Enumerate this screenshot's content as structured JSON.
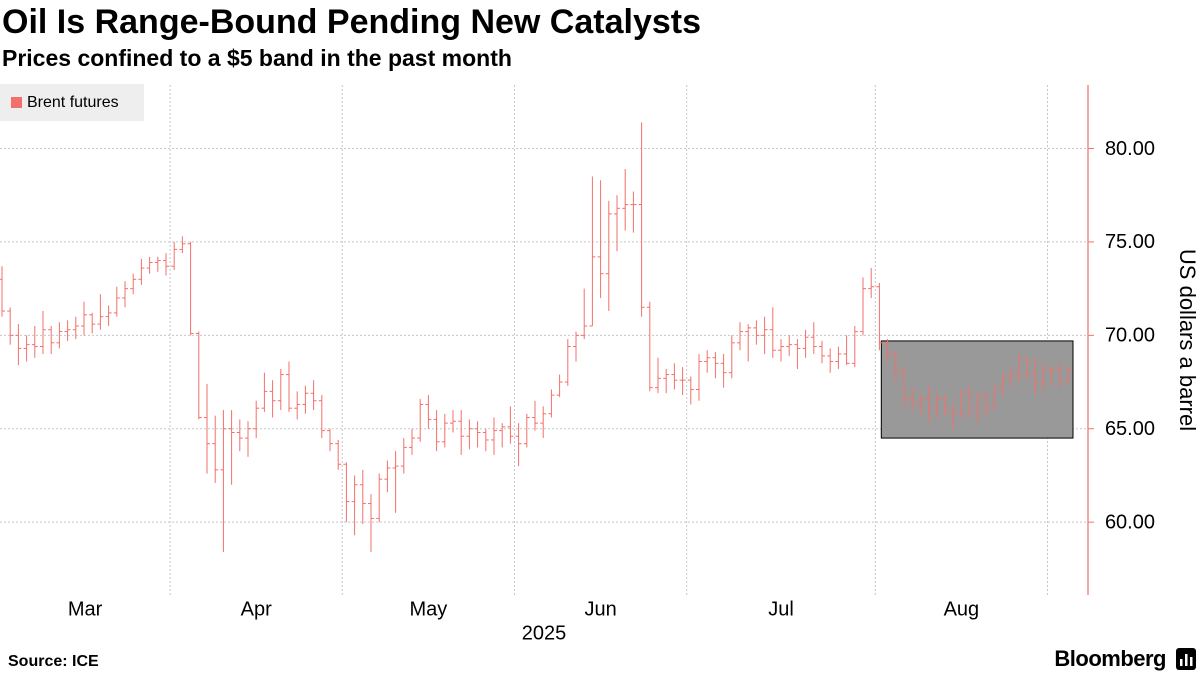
{
  "chart_data": {
    "type": "ohlc",
    "title": "Oil Is Range-Bound Pending New Catalysts",
    "subtitle": "Prices confined to a $5 band in the past month",
    "series": [
      {
        "name": "Brent futures",
        "color": "#f2706b"
      }
    ],
    "x_label": "2025",
    "y_label": "US dollars a barrel",
    "source": "Source: ICE",
    "brand": "Bloomberg",
    "ylim": [
      56.1,
      83.4
    ],
    "yticks": [
      {
        "value": 60,
        "label": "60.00"
      },
      {
        "value": 65,
        "label": "65.00"
      },
      {
        "value": 70,
        "label": "70.00"
      },
      {
        "value": 75,
        "label": "75.00"
      },
      {
        "value": 80,
        "label": "80.00"
      }
    ],
    "grid": true,
    "y_axis_side": "right",
    "highlight": {
      "y": [
        64.5,
        69.7
      ],
      "color": "#999999"
    },
    "months": [
      {
        "label": "Mar",
        "bars": [
          [
            73.0,
            73.7,
            71.0,
            71.3
          ],
          [
            71.3,
            71.5,
            69.5,
            70.0
          ],
          [
            70.0,
            70.6,
            68.4,
            69.3
          ],
          [
            69.3,
            70.0,
            68.6,
            69.5
          ],
          [
            69.5,
            70.5,
            68.8,
            69.4
          ],
          [
            69.4,
            71.3,
            69.0,
            70.3
          ],
          [
            70.3,
            70.5,
            69.0,
            69.6
          ],
          [
            69.6,
            70.7,
            69.3,
            70.2
          ],
          [
            70.2,
            70.8,
            69.7,
            70.3
          ],
          [
            70.3,
            71.0,
            69.8,
            70.5
          ],
          [
            70.5,
            71.8,
            70.0,
            71.1
          ],
          [
            71.1,
            71.2,
            70.1,
            70.6
          ],
          [
            70.6,
            72.2,
            70.3,
            71.0
          ],
          [
            71.0,
            71.6,
            70.5,
            71.2
          ],
          [
            71.2,
            72.6,
            71.0,
            72.0
          ],
          [
            72.0,
            72.9,
            71.5,
            72.5
          ],
          [
            72.5,
            73.3,
            72.2,
            73.0
          ],
          [
            73.0,
            74.1,
            72.7,
            73.6
          ],
          [
            73.6,
            74.2,
            73.3,
            73.9
          ],
          [
            73.9,
            74.2,
            73.4,
            74.0
          ],
          [
            74.0,
            74.4,
            73.2,
            73.7
          ]
        ]
      },
      {
        "label": "Apr",
        "bars": [
          [
            73.7,
            75.0,
            73.5,
            74.6
          ],
          [
            74.6,
            75.3,
            74.4,
            74.9
          ],
          [
            74.9,
            75.0,
            70.0,
            70.1
          ],
          [
            70.1,
            70.2,
            65.5,
            65.6
          ],
          [
            65.6,
            67.4,
            62.6,
            64.2
          ],
          [
            64.2,
            65.7,
            62.1,
            62.8
          ],
          [
            62.8,
            66.0,
            58.4,
            65.0
          ],
          [
            65.0,
            66.0,
            62.0,
            64.8
          ],
          [
            64.8,
            65.5,
            63.8,
            64.5
          ],
          [
            64.5,
            65.4,
            63.5,
            65.0
          ],
          [
            65.0,
            66.5,
            64.5,
            66.1
          ],
          [
            66.1,
            68.0,
            65.9,
            67.0
          ],
          [
            67.0,
            67.6,
            65.6,
            66.5
          ],
          [
            66.5,
            68.2,
            66.0,
            67.9
          ],
          [
            67.9,
            68.6,
            65.9,
            66.1
          ],
          [
            66.1,
            67.0,
            65.5,
            66.3
          ],
          [
            66.3,
            67.3,
            65.8,
            66.9
          ],
          [
            66.9,
            67.6,
            66.0,
            66.5
          ],
          [
            66.5,
            66.8,
            64.5,
            64.9
          ],
          [
            64.9,
            65.0,
            63.8,
            64.2
          ],
          [
            64.2,
            64.4,
            62.8,
            63.1
          ]
        ]
      },
      {
        "label": "May",
        "bars": [
          [
            63.1,
            63.2,
            60.0,
            61.1
          ],
          [
            61.1,
            62.5,
            59.3,
            62.0
          ],
          [
            62.0,
            62.8,
            59.9,
            61.0
          ],
          [
            61.0,
            61.5,
            58.4,
            60.2
          ],
          [
            60.2,
            62.6,
            60.0,
            62.3
          ],
          [
            62.3,
            63.3,
            61.6,
            62.9
          ],
          [
            62.9,
            63.8,
            60.5,
            63.0
          ],
          [
            63.0,
            64.5,
            62.6,
            64.0
          ],
          [
            64.0,
            65.0,
            63.6,
            64.5
          ],
          [
            64.5,
            66.6,
            64.3,
            66.3
          ],
          [
            66.3,
            66.8,
            65.0,
            65.5
          ],
          [
            65.5,
            66.0,
            63.8,
            64.3
          ],
          [
            64.3,
            65.8,
            64.0,
            65.3
          ],
          [
            65.3,
            66.0,
            64.8,
            65.4
          ],
          [
            65.4,
            66.0,
            63.6,
            64.6
          ],
          [
            64.6,
            65.5,
            63.9,
            65.0
          ],
          [
            65.0,
            65.4,
            64.0,
            64.8
          ],
          [
            64.8,
            65.0,
            63.8,
            64.4
          ],
          [
            64.4,
            65.6,
            63.6,
            64.9
          ],
          [
            64.9,
            65.3,
            64.0,
            65.1
          ],
          [
            65.1,
            66.2,
            64.2,
            64.6
          ]
        ]
      },
      {
        "label": "Jun",
        "bars": [
          [
            64.6,
            65.3,
            63.0,
            64.2
          ],
          [
            64.2,
            65.8,
            64.0,
            65.6
          ],
          [
            65.6,
            66.5,
            64.9,
            65.3
          ],
          [
            65.3,
            66.2,
            64.5,
            65.8
          ],
          [
            65.8,
            67.1,
            65.6,
            66.8
          ],
          [
            66.8,
            67.9,
            66.7,
            67.5
          ],
          [
            67.5,
            69.8,
            67.3,
            69.4
          ],
          [
            69.4,
            70.2,
            68.6,
            70.0
          ],
          [
            70.0,
            72.5,
            69.8,
            70.5
          ],
          [
            70.5,
            78.5,
            70.5,
            74.2
          ],
          [
            74.2,
            78.3,
            72.0,
            73.3
          ],
          [
            73.3,
            77.2,
            71.3,
            76.5
          ],
          [
            76.5,
            77.5,
            74.5,
            76.8
          ],
          [
            76.8,
            78.9,
            75.6,
            77.0
          ],
          [
            77.0,
            77.7,
            75.5,
            77.0
          ],
          [
            77.0,
            81.4,
            71.0,
            71.5
          ],
          [
            71.5,
            71.8,
            67.0,
            67.2
          ],
          [
            67.2,
            68.8,
            66.9,
            67.7
          ],
          [
            67.7,
            68.2,
            66.9,
            67.9
          ],
          [
            67.9,
            68.5,
            67.1,
            67.6
          ],
          [
            67.6,
            68.3,
            66.8,
            67.6
          ]
        ]
      },
      {
        "label": "Jul",
        "bars": [
          [
            67.6,
            67.8,
            66.3,
            67.1
          ],
          [
            67.1,
            69.0,
            66.5,
            68.6
          ],
          [
            68.6,
            69.2,
            68.0,
            68.8
          ],
          [
            68.8,
            69.1,
            67.7,
            68.5
          ],
          [
            68.5,
            69.0,
            67.2,
            68.0
          ],
          [
            68.0,
            70.0,
            67.7,
            69.6
          ],
          [
            69.6,
            70.7,
            69.2,
            70.2
          ],
          [
            70.2,
            70.6,
            68.6,
            70.4
          ],
          [
            70.4,
            70.8,
            69.5,
            70.0
          ],
          [
            70.0,
            71.0,
            69.0,
            70.3
          ],
          [
            70.3,
            71.5,
            68.8,
            69.2
          ],
          [
            69.2,
            69.8,
            68.6,
            69.4
          ],
          [
            69.4,
            70.0,
            68.9,
            69.5
          ],
          [
            69.5,
            69.8,
            68.2,
            69.3
          ],
          [
            69.3,
            70.3,
            68.8,
            69.9
          ],
          [
            69.9,
            70.7,
            69.0,
            69.4
          ],
          [
            69.4,
            69.7,
            68.5,
            68.9
          ],
          [
            68.9,
            69.3,
            68.0,
            68.6
          ],
          [
            68.6,
            69.4,
            68.2,
            69.0
          ],
          [
            69.0,
            70.0,
            68.4,
            68.5
          ],
          [
            68.5,
            70.5,
            68.3,
            70.2
          ],
          [
            70.2,
            73.1,
            70.0,
            72.5
          ],
          [
            72.5,
            73.6,
            72.0,
            72.6
          ]
        ]
      },
      {
        "label": "Aug",
        "bars": [
          [
            72.6,
            72.8,
            69.2,
            69.6
          ],
          [
            69.6,
            69.8,
            68.6,
            69.0
          ],
          [
            69.0,
            69.2,
            67.5,
            68.1
          ],
          [
            68.1,
            68.3,
            66.2,
            66.6
          ],
          [
            66.6,
            67.2,
            66.0,
            66.4
          ],
          [
            66.4,
            66.9,
            65.8,
            66.6
          ],
          [
            66.6,
            67.3,
            65.3,
            66.2
          ],
          [
            66.2,
            66.9,
            65.6,
            66.6
          ],
          [
            66.6,
            66.8,
            65.7,
            66.0
          ],
          [
            66.0,
            66.3,
            65.0,
            65.8
          ],
          [
            65.8,
            67.1,
            65.6,
            66.9
          ],
          [
            66.9,
            67.3,
            65.6,
            66.0
          ],
          [
            66.0,
            66.9,
            65.3,
            66.8
          ],
          [
            66.8,
            67.0,
            65.7,
            66.1
          ],
          [
            66.1,
            67.3,
            66.0,
            67.2
          ],
          [
            67.2,
            68.0,
            66.8,
            67.7
          ],
          [
            67.7,
            68.3,
            67.3,
            67.9
          ],
          [
            67.9,
            69.0,
            67.5,
            68.8
          ],
          [
            68.8,
            68.9,
            67.6,
            68.0
          ],
          [
            68.0,
            68.8,
            66.8,
            67.5
          ],
          [
            67.5,
            68.5,
            67.0,
            68.1
          ]
        ]
      },
      {
        "label": null,
        "bars": [
          [
            68.1,
            68.4,
            67.3,
            68.2
          ],
          [
            68.2,
            68.5,
            67.2,
            67.6
          ],
          [
            67.6,
            68.3,
            67.4,
            68.2
          ]
        ]
      }
    ]
  }
}
